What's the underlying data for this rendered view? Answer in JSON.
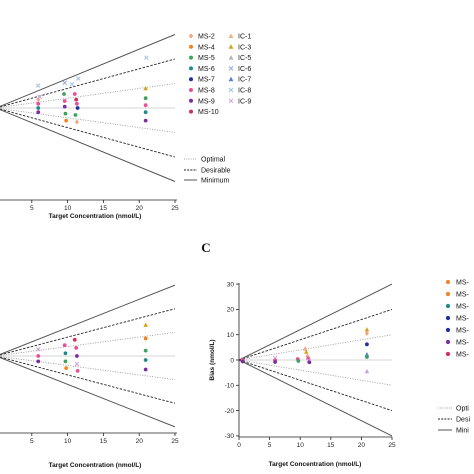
{
  "panel_labels": {
    "c": "C"
  },
  "line_legend": {
    "optimal": "Optimal",
    "desirable": "Desirable",
    "minimum": "Minimum"
  },
  "line_legend_truncated": {
    "optimal": "Opti",
    "desirable": "Desi",
    "minimum": "Mini"
  },
  "method_legend_right_truncated": [
    "MS-",
    "MS-",
    "MS-",
    "MS-",
    "MS-",
    "MS-",
    "MS-"
  ],
  "chart_data": [
    {
      "type": "scatter",
      "xlabel": "Target Concentration (nmol/L)",
      "ylabel": "",
      "xlim": [
        0,
        25
      ],
      "x_ticks": [
        "5",
        "10",
        "15",
        "20",
        "25"
      ],
      "limit_lines": [
        {
          "name": "Optimal",
          "style": "dotted",
          "slope": 0.07
        },
        {
          "name": "Desirable",
          "style": "dashed",
          "slope": 0.14
        },
        {
          "name": "Minimum",
          "style": "solid",
          "slope": 0.21
        }
      ],
      "legend": {
        "col1": [
          {
            "label": "MS-2",
            "color": "#f4a582",
            "marker": "diamond"
          },
          {
            "label": "MS-4",
            "color": "#f58220",
            "marker": "circle"
          },
          {
            "label": "MS-5",
            "color": "#3da35d",
            "marker": "circle"
          },
          {
            "label": "MS-6",
            "color": "#1f8a8a",
            "marker": "circle"
          },
          {
            "label": "MS-7",
            "color": "#1f2fa0",
            "marker": "circle"
          },
          {
            "label": "MS-8",
            "color": "#e94f96",
            "marker": "circle"
          },
          {
            "label": "MS-9",
            "color": "#7b2f9e",
            "marker": "circle"
          },
          {
            "label": "MS-10",
            "color": "#c8325c",
            "marker": "circle"
          }
        ],
        "col2": [
          {
            "label": "IC-1",
            "color": "#f4b183",
            "marker": "triangle"
          },
          {
            "label": "IC-3",
            "color": "#d4a017",
            "marker": "triangle"
          },
          {
            "label": "IC-5",
            "color": "#b5b5b5",
            "marker": "triangle"
          },
          {
            "label": "IC-6",
            "color": "#8faadc",
            "marker": "cross"
          },
          {
            "label": "IC-7",
            "color": "#5b7fd1",
            "marker": "triangle"
          },
          {
            "label": "IC-8",
            "color": "#9dc3e6",
            "marker": "cross"
          },
          {
            "label": "IC-9",
            "color": "#c9a0dc",
            "marker": "cross"
          }
        ]
      },
      "points": [
        {
          "x": 5.9,
          "y": 1.6,
          "c": "#9dc3e6",
          "m": "cross"
        },
        {
          "x": 5.9,
          "y": 0.6,
          "c": "#f4a582",
          "m": "diamond"
        },
        {
          "x": 5.9,
          "y": 0.3,
          "c": "#e94f96",
          "m": "circle"
        },
        {
          "x": 5.9,
          "y": 0.0,
          "c": "#1f8a8a",
          "m": "circle"
        },
        {
          "x": 5.9,
          "y": -0.3,
          "c": "#7b2f9e",
          "m": "circle"
        },
        {
          "x": 6.1,
          "y": 0.8,
          "c": "#c9a0dc",
          "m": "cross"
        },
        {
          "x": 9.5,
          "y": 1.0,
          "c": "#3da35d",
          "m": "circle"
        },
        {
          "x": 9.6,
          "y": 0.5,
          "c": "#e94f96",
          "m": "circle"
        },
        {
          "x": 9.6,
          "y": 0.1,
          "c": "#7b2f9e",
          "m": "circle"
        },
        {
          "x": 9.7,
          "y": -0.4,
          "c": "#3da35d",
          "m": "circle"
        },
        {
          "x": 9.8,
          "y": -0.9,
          "c": "#f58220",
          "m": "circle"
        },
        {
          "x": 9.6,
          "y": 1.8,
          "c": "#8faadc",
          "m": "cross"
        },
        {
          "x": 10.6,
          "y": 1.7,
          "c": "#9dc3e6",
          "m": "cross"
        },
        {
          "x": 11.0,
          "y": 1.0,
          "c": "#e94f96",
          "m": "circle"
        },
        {
          "x": 11.2,
          "y": 0.6,
          "c": "#c8325c",
          "m": "circle"
        },
        {
          "x": 11.3,
          "y": 0.3,
          "c": "#e94f96",
          "m": "circle"
        },
        {
          "x": 11.4,
          "y": 0.0,
          "c": "#1f2fa0",
          "m": "circle"
        },
        {
          "x": 11.1,
          "y": -0.5,
          "c": "#3da35d",
          "m": "circle"
        },
        {
          "x": 11.3,
          "y": -1.0,
          "c": "#f4a582",
          "m": "diamond"
        },
        {
          "x": 11.5,
          "y": 2.1,
          "c": "#9dc3e6",
          "m": "cross"
        },
        {
          "x": 20.9,
          "y": 1.4,
          "c": "#d4a017",
          "m": "triangle"
        },
        {
          "x": 20.9,
          "y": 0.7,
          "c": "#3da35d",
          "m": "circle"
        },
        {
          "x": 20.9,
          "y": 0.2,
          "c": "#e94f96",
          "m": "circle"
        },
        {
          "x": 20.9,
          "y": -0.3,
          "c": "#1f8a8a",
          "m": "circle"
        },
        {
          "x": 20.9,
          "y": -0.9,
          "c": "#7b2f9e",
          "m": "circle"
        },
        {
          "x": 21.0,
          "y": 3.6,
          "c": "#9dc3e6",
          "m": "cross"
        }
      ]
    },
    {
      "type": "scatter",
      "xlabel": "Target Concentration (nmol/L)",
      "ylabel": "",
      "xlim": [
        0,
        25
      ],
      "x_ticks": [
        "5",
        "10",
        "15",
        "20",
        "25"
      ],
      "limit_lines": [
        {
          "name": "Optimal",
          "style": "dotted",
          "slope": 0.07
        },
        {
          "name": "Desirable",
          "style": "dashed",
          "slope": 0.14
        },
        {
          "name": "Minimum",
          "style": "solid",
          "slope": 0.21
        }
      ],
      "points": [
        {
          "x": 5.9,
          "y": 0.5,
          "c": "#c9a0dc",
          "m": "cross"
        },
        {
          "x": 5.9,
          "y": 0.0,
          "c": "#e94f96",
          "m": "circle"
        },
        {
          "x": 5.9,
          "y": -0.4,
          "c": "#7b2f9e",
          "m": "circle"
        },
        {
          "x": 9.6,
          "y": 0.8,
          "c": "#e94f96",
          "m": "circle"
        },
        {
          "x": 9.7,
          "y": 0.2,
          "c": "#1f8a8a",
          "m": "circle"
        },
        {
          "x": 9.7,
          "y": -0.4,
          "c": "#3da35d",
          "m": "circle"
        },
        {
          "x": 9.8,
          "y": -0.9,
          "c": "#f58220",
          "m": "circle"
        },
        {
          "x": 11.0,
          "y": 1.2,
          "c": "#c8325c",
          "m": "circle"
        },
        {
          "x": 11.2,
          "y": 0.6,
          "c": "#e94f96",
          "m": "circle"
        },
        {
          "x": 11.3,
          "y": 0.0,
          "c": "#7b2f9e",
          "m": "circle"
        },
        {
          "x": 11.3,
          "y": -0.6,
          "c": "#c9a0dc",
          "m": "cross"
        },
        {
          "x": 11.4,
          "y": -1.1,
          "c": "#e94f96",
          "m": "circle"
        },
        {
          "x": 20.9,
          "y": 2.3,
          "c": "#d4a017",
          "m": "triangle"
        },
        {
          "x": 20.9,
          "y": 1.3,
          "c": "#f58220",
          "m": "circle"
        },
        {
          "x": 20.9,
          "y": 0.4,
          "c": "#3da35d",
          "m": "circle"
        },
        {
          "x": 20.9,
          "y": -0.3,
          "c": "#1f8a8a",
          "m": "circle"
        },
        {
          "x": 20.9,
          "y": -1.0,
          "c": "#7b2f9e",
          "m": "circle"
        }
      ]
    },
    {
      "type": "scatter",
      "xlabel": "Target Concentration (nmol/L)",
      "ylabel": "Bias (nmol/L)",
      "xlim": [
        0,
        25
      ],
      "ylim": [
        -30,
        30
      ],
      "x_ticks": [
        "0",
        "5",
        "10",
        "15",
        "20",
        "25"
      ],
      "y_ticks": [
        "30",
        "20",
        "10",
        "0",
        "-10",
        "-20",
        "-30"
      ],
      "limit_lines": [
        {
          "name": "Optimal",
          "style": "dotted",
          "slope": 0.4
        },
        {
          "name": "Desirable",
          "style": "dashed",
          "slope": 0.8
        },
        {
          "name": "Minimum",
          "style": "solid",
          "slope": 1.2
        }
      ],
      "points": [
        {
          "x": 0.6,
          "y": 0.0,
          "c": "#e94f96",
          "m": "circle"
        },
        {
          "x": 0.6,
          "y": -0.6,
          "c": "#7b2f9e",
          "m": "circle"
        },
        {
          "x": 5.9,
          "y": 0.8,
          "c": "#c9a0dc",
          "m": "cross"
        },
        {
          "x": 5.9,
          "y": -0.2,
          "c": "#e94f96",
          "m": "circle"
        },
        {
          "x": 5.9,
          "y": -0.8,
          "c": "#7b2f9e",
          "m": "circle"
        },
        {
          "x": 9.6,
          "y": 0.4,
          "c": "#e94f96",
          "m": "circle"
        },
        {
          "x": 9.7,
          "y": -0.4,
          "c": "#3da35d",
          "m": "circle"
        },
        {
          "x": 10.8,
          "y": 4.5,
          "c": "#f4a582",
          "m": "triangle"
        },
        {
          "x": 11.0,
          "y": 3.2,
          "c": "#d4a017",
          "m": "triangle"
        },
        {
          "x": 11.2,
          "y": 1.5,
          "c": "#f4a582",
          "m": "diamond"
        },
        {
          "x": 11.3,
          "y": 0.6,
          "c": "#e94f96",
          "m": "circle"
        },
        {
          "x": 11.4,
          "y": -0.2,
          "c": "#c9a0dc",
          "m": "cross"
        },
        {
          "x": 11.5,
          "y": -0.9,
          "c": "#7b2f9e",
          "m": "circle"
        },
        {
          "x": 20.9,
          "y": 12.0,
          "c": "#d4a017",
          "m": "triangle"
        },
        {
          "x": 20.9,
          "y": 10.5,
          "c": "#f4a582",
          "m": "diamond"
        },
        {
          "x": 20.9,
          "y": 6.2,
          "c": "#1f2fa0",
          "m": "circle"
        },
        {
          "x": 20.9,
          "y": 2.2,
          "c": "#5b7fd1",
          "m": "triangle"
        },
        {
          "x": 20.9,
          "y": 1.2,
          "c": "#3da35d",
          "m": "circle"
        },
        {
          "x": 20.9,
          "y": -4.5,
          "c": "#c9a0dc",
          "m": "triangle"
        }
      ]
    }
  ],
  "right_legend_colors": [
    "#f58220",
    "#f58220",
    "#1f8a8a",
    "#1f2fa0",
    "#1f2fa0",
    "#7b2f9e",
    "#c8325c"
  ]
}
